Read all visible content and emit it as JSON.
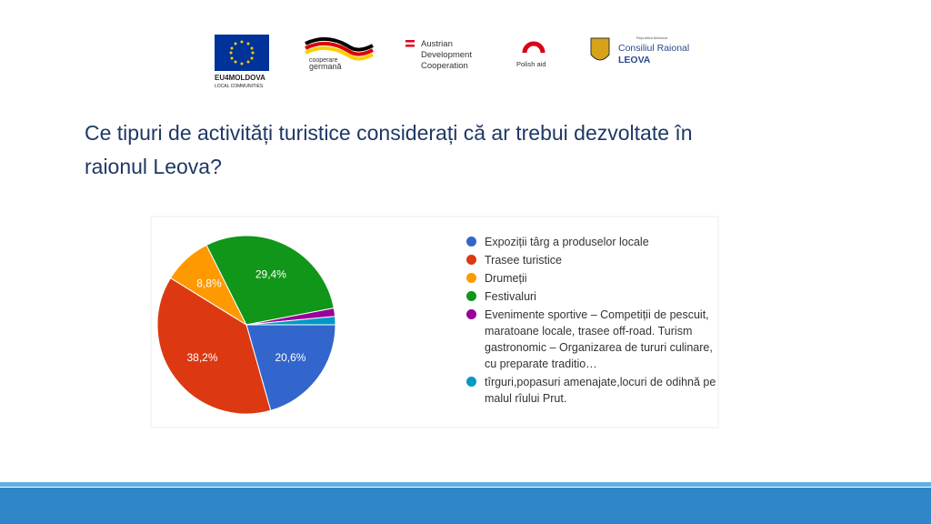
{
  "logos": {
    "eu": [
      "EU4MOLDOVA",
      "LOCAL COMMUNITIES"
    ],
    "germany": [
      "cooperare",
      "germană"
    ],
    "austria": [
      "Austrian",
      "Development",
      "Cooperation"
    ],
    "poland": "Polish aid",
    "leova": [
      "Republica Moldova",
      "Consiliul Raional",
      "LEOVA"
    ]
  },
  "chart_data": {
    "type": "pie",
    "title": "Ce tipuri de activități turistice considerați că ar trebui dezvoltate în raionul Leova?",
    "categories": [
      "Expoziții târg a produselor locale",
      "Trasee turistice",
      "Drumeții",
      "Festivaluri",
      "Evenimente sportive – Competiții de pescuit, maratoane locale, trasee off-road. Turism gastronomic – Organizarea de tururi culinare, cu preparate traditio…",
      "tîrguri,popasuri amenajate,locuri de odihnă pe malul rîului Prut."
    ],
    "values": [
      20.6,
      38.2,
      8.8,
      29.4,
      1.5,
      1.5
    ],
    "value_labels": [
      "20,6%",
      "38,2%",
      "8,8%",
      "29,4%",
      null,
      null
    ],
    "colors": [
      "#3366cc",
      "#dc3912",
      "#ff9900",
      "#109618",
      "#990099",
      "#0099c6"
    ]
  }
}
